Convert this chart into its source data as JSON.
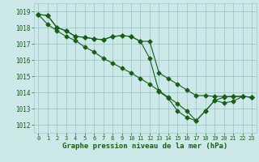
{
  "title": "Graphe pression niveau de la mer (hPa)",
  "background_color": "#cce8e8",
  "grid_color": "#a0c8c8",
  "line_color": "#1a5c1a",
  "xlim": [
    -0.5,
    23.5
  ],
  "ylim": [
    1011.5,
    1019.5
  ],
  "yticks": [
    1012,
    1013,
    1014,
    1015,
    1016,
    1017,
    1018,
    1019
  ],
  "xticks": [
    0,
    1,
    2,
    3,
    4,
    5,
    6,
    7,
    8,
    9,
    10,
    11,
    12,
    13,
    14,
    15,
    16,
    17,
    18,
    19,
    20,
    21,
    22,
    23
  ],
  "line1_x": [
    0,
    1,
    2,
    3,
    4,
    5,
    6,
    7,
    8,
    9,
    10,
    11,
    12,
    13,
    14,
    15,
    16,
    17,
    18,
    19,
    20,
    21,
    22,
    23
  ],
  "line1_y": [
    1018.8,
    1018.75,
    1018.0,
    1017.8,
    1017.45,
    1017.4,
    1017.3,
    1017.25,
    1017.45,
    1017.5,
    1017.45,
    1017.15,
    1017.15,
    1015.2,
    1014.85,
    1014.5,
    1014.15,
    1013.8,
    1013.8,
    1013.75,
    1013.75,
    1013.75,
    1013.75,
    1013.7
  ],
  "line2_x": [
    0,
    1,
    2,
    3,
    4,
    5,
    6,
    7,
    8,
    9,
    10,
    11,
    12,
    13,
    14,
    15,
    16,
    17,
    18,
    19,
    20,
    21,
    22,
    23
  ],
  "line2_y": [
    1018.8,
    1018.75,
    1018.0,
    1017.8,
    1017.45,
    1017.4,
    1017.3,
    1017.25,
    1017.45,
    1017.5,
    1017.45,
    1017.15,
    1016.1,
    1014.05,
    1013.65,
    1012.85,
    1012.45,
    1012.25,
    1012.85,
    1013.5,
    1013.7,
    1013.75,
    1013.75,
    1013.7
  ],
  "line3_x": [
    0,
    1,
    2,
    3,
    4,
    5,
    6,
    7,
    8,
    9,
    10,
    11,
    12,
    13,
    14,
    15,
    16,
    17,
    18,
    19,
    20,
    21,
    22,
    23
  ],
  "line3_y": [
    1018.8,
    1018.2,
    1017.8,
    1017.45,
    1017.2,
    1016.8,
    1016.5,
    1016.1,
    1015.8,
    1015.5,
    1015.2,
    1014.85,
    1014.5,
    1014.1,
    1013.7,
    1013.3,
    1012.85,
    1012.25,
    1012.85,
    1013.5,
    1013.35,
    1013.45,
    1013.75,
    1013.7
  ]
}
